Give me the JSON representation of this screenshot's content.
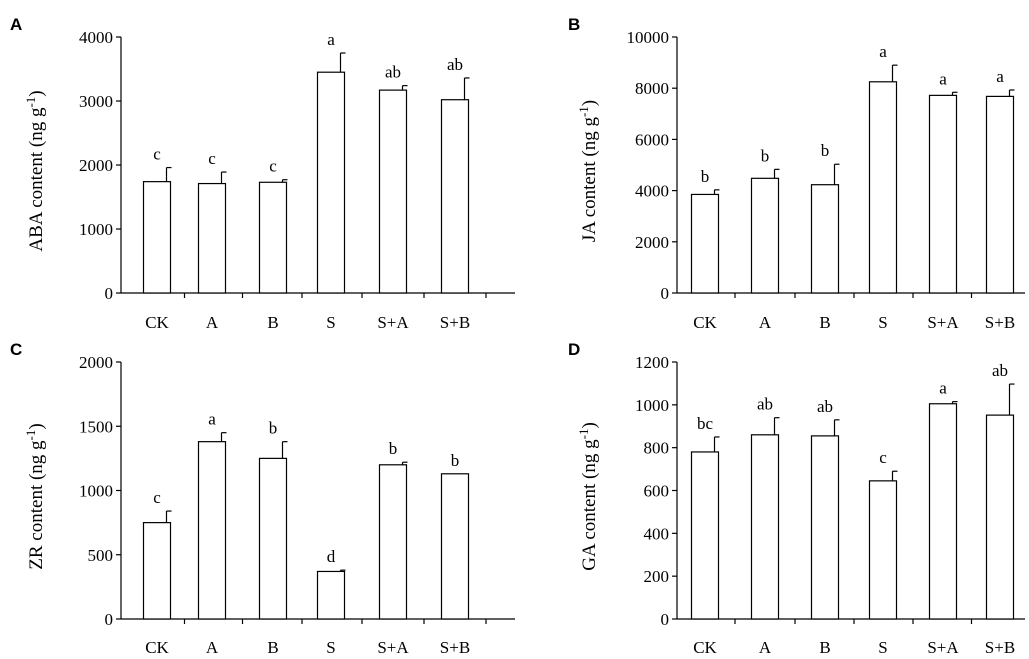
{
  "chart_data": [
    {
      "type": "bar",
      "panel": "A",
      "ylabel_main": "ABA content (ng g",
      "ylabel_sup": "-1",
      "ylabel_end": ")",
      "categories": [
        "CK",
        "A",
        "B",
        "S",
        "S+A",
        "S+B"
      ],
      "values": [
        1740,
        1710,
        1730,
        3450,
        3170,
        3020
      ],
      "errors": [
        220,
        180,
        40,
        300,
        70,
        340
      ],
      "letters": [
        "c",
        "c",
        "c",
        "a",
        "ab",
        "ab"
      ],
      "ylim": [
        0,
        4000
      ],
      "yticks": [
        "0",
        "1000",
        "2000",
        "3000",
        "4000"
      ]
    },
    {
      "type": "bar",
      "panel": "B",
      "ylabel_main": "JA content (ng g",
      "ylabel_sup": "-1",
      "ylabel_end": ")",
      "categories": [
        "CK",
        "A",
        "B",
        "S",
        "S+A",
        "S+B"
      ],
      "values": [
        3850,
        4480,
        4230,
        8250,
        7720,
        7680
      ],
      "errors": [
        180,
        350,
        800,
        650,
        120,
        250
      ],
      "letters": [
        "b",
        "b",
        "b",
        "a",
        "a",
        "a"
      ],
      "ylim": [
        0,
        10000
      ],
      "yticks": [
        "0",
        "2000",
        "4000",
        "6000",
        "8000",
        "10000"
      ]
    },
    {
      "type": "bar",
      "panel": "C",
      "ylabel_main": "ZR content (ng g",
      "ylabel_sup": "-1",
      "ylabel_end": ")",
      "categories": [
        "CK",
        "A",
        "B",
        "S",
        "S+A",
        "S+B"
      ],
      "values": [
        750,
        1380,
        1250,
        370,
        1200,
        1130
      ],
      "errors": [
        90,
        70,
        130,
        10,
        20,
        0
      ],
      "letters": [
        "c",
        "a",
        "b",
        "d",
        "b",
        "b"
      ],
      "ylim": [
        0,
        2000
      ],
      "yticks": [
        "0",
        "500",
        "1000",
        "1500",
        "2000"
      ]
    },
    {
      "type": "bar",
      "panel": "D",
      "ylabel_main": "GA content (ng g",
      "ylabel_sup": "-1",
      "ylabel_end": ")",
      "categories": [
        "CK",
        "A",
        "B",
        "S",
        "S+A",
        "S+B"
      ],
      "values": [
        780,
        860,
        855,
        645,
        1005,
        952
      ],
      "errors": [
        70,
        80,
        75,
        45,
        10,
        145
      ],
      "letters": [
        "bc",
        "ab",
        "ab",
        "c",
        "a",
        "ab"
      ],
      "ylim": [
        0,
        1200
      ],
      "yticks": [
        "0",
        "200",
        "400",
        "600",
        "800",
        "1000",
        "1200"
      ]
    }
  ]
}
